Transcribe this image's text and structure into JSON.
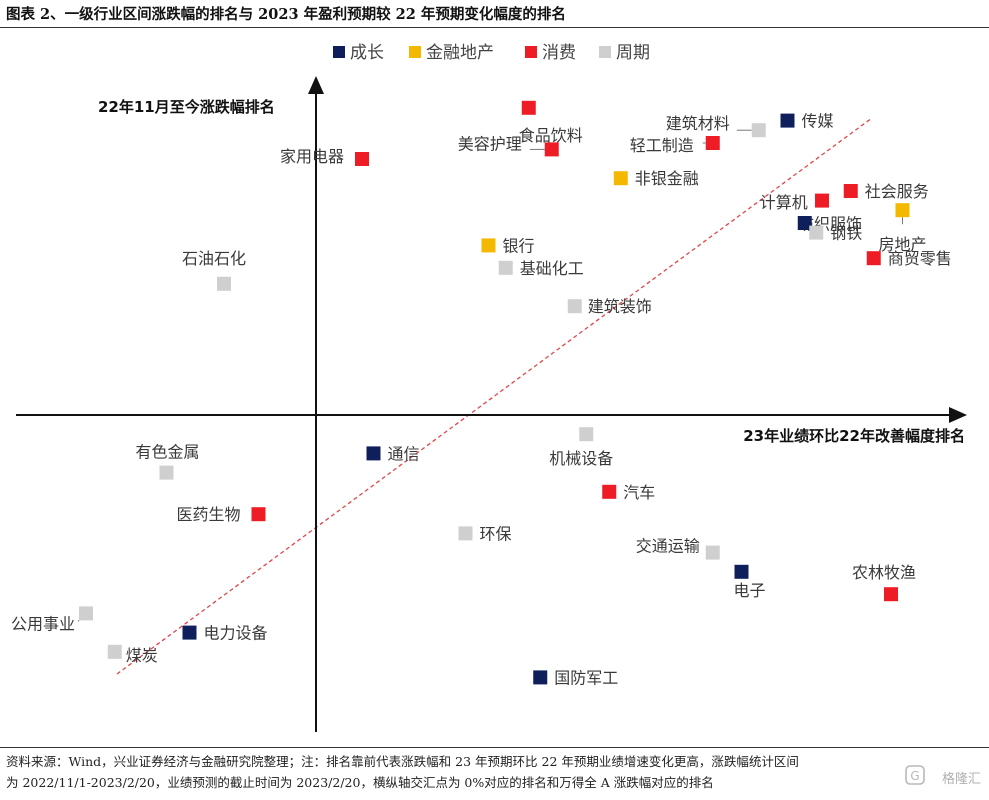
{
  "figure": {
    "title": "图表 2、一级行业区间涨跌幅的排名与 2023 年盈利预期较 22 年预期变化幅度的排名"
  },
  "footer": {
    "line1": "资料来源：Wind，兴业证券经济与金融研究院整理；注：排名靠前代表涨跌幅和 23 年预期环比 22 年预期业绩增速变化更高，涨跌幅统计区间",
    "line2": "为 2022/11/1-2023/2/20，业绩预测的截止时间为 2023/2/20，横纵轴交汇点为 0%对应的排名和万得全 A 涨跌幅对应的排名"
  },
  "watermark": {
    "text": "格隆汇"
  },
  "chart_data": {
    "type": "scatter",
    "title": "",
    "xlabel": "23年业绩环比22年改善幅度排名",
    "ylabel": "22年11月至今涨跌幅排名",
    "grid": false,
    "legend_position": "top",
    "categories": [
      {
        "name": "成长",
        "color": "#0f1f5c"
      },
      {
        "name": "金融地产",
        "color": "#f5b800"
      },
      {
        "name": "消费",
        "color": "#ee1c24"
      },
      {
        "name": "周期",
        "color": "#cfcfcf"
      }
    ],
    "points": [
      {
        "label": "食品饮料",
        "cat": "消费",
        "x": 0.37,
        "y": 0.96
      },
      {
        "label": "传媒",
        "cat": "成长",
        "x": 0.82,
        "y": 0.92
      },
      {
        "label": "建筑材料",
        "cat": "周期",
        "x": 0.77,
        "y": 0.89
      },
      {
        "label": "轻工制造",
        "cat": "消费",
        "x": 0.69,
        "y": 0.85
      },
      {
        "label": "美容护理",
        "cat": "消费",
        "x": 0.41,
        "y": 0.83
      },
      {
        "label": "家用电器",
        "cat": "消费",
        "x": 0.08,
        "y": 0.8
      },
      {
        "label": "非银金融",
        "cat": "金融地产",
        "x": 0.53,
        "y": 0.74
      },
      {
        "label": "社会服务",
        "cat": "消费",
        "x": 0.93,
        "y": 0.7
      },
      {
        "label": "纺织服饰",
        "cat": "消费",
        "x": 0.88,
        "y": 0.67
      },
      {
        "label": "房地产",
        "cat": "金融地产",
        "x": 1.02,
        "y": 0.64
      },
      {
        "label": "计算机",
        "cat": "成长",
        "x": 0.85,
        "y": 0.6
      },
      {
        "label": "钢铁",
        "cat": "周期",
        "x": 0.87,
        "y": 0.57
      },
      {
        "label": "银行",
        "cat": "金融地产",
        "x": 0.3,
        "y": 0.53
      },
      {
        "label": "商贸零售",
        "cat": "消费",
        "x": 0.97,
        "y": 0.49
      },
      {
        "label": "基础化工",
        "cat": "周期",
        "x": 0.33,
        "y": 0.46
      },
      {
        "label": "石油石化",
        "cat": "周期",
        "x": -0.16,
        "y": 0.41
      },
      {
        "label": "建筑装饰",
        "cat": "周期",
        "x": 0.45,
        "y": 0.34
      },
      {
        "label": "通信",
        "cat": "成长",
        "x": 0.1,
        "y": -0.12
      },
      {
        "label": "机械设备",
        "cat": "周期",
        "x": 0.47,
        "y": -0.06
      },
      {
        "label": "有色金属",
        "cat": "周期",
        "x": -0.26,
        "y": -0.18
      },
      {
        "label": "汽车",
        "cat": "消费",
        "x": 0.51,
        "y": -0.24
      },
      {
        "label": "医药生物",
        "cat": "消费",
        "x": -0.1,
        "y": -0.31
      },
      {
        "label": "环保",
        "cat": "周期",
        "x": 0.26,
        "y": -0.37
      },
      {
        "label": "交通运输",
        "cat": "周期",
        "x": 0.69,
        "y": -0.43
      },
      {
        "label": "电子",
        "cat": "成长",
        "x": 0.74,
        "y": -0.49
      },
      {
        "label": "农林牧渔",
        "cat": "消费",
        "x": 1.0,
        "y": -0.56
      },
      {
        "label": "公用事业",
        "cat": "周期",
        "x": -0.4,
        "y": -0.62
      },
      {
        "label": "电力设备",
        "cat": "成长",
        "x": -0.22,
        "y": -0.68
      },
      {
        "label": "煤炭",
        "cat": "周期",
        "x": -0.35,
        "y": -0.74
      },
      {
        "label": "国防军工",
        "cat": "成长",
        "x": 0.39,
        "y": -0.82
      }
    ]
  }
}
